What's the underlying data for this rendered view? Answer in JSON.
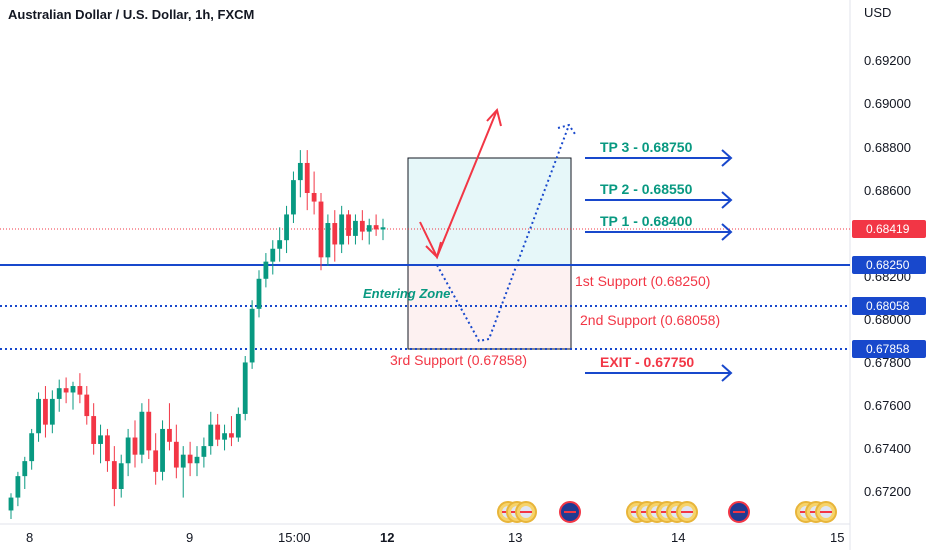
{
  "chart_data": {
    "type": "candlestick",
    "title": "Australian Dollar / U.S. Dollar, 1h, FXCM",
    "currency": "USD",
    "ylim": [
      0.6709,
      0.6936
    ],
    "y_ticks": [
      "0.69200",
      "0.69000",
      "0.68800",
      "0.68600",
      "0.68200",
      "0.68000",
      "0.67800",
      "0.67600",
      "0.67400",
      "0.67200"
    ],
    "x_ticks": [
      "8",
      "9",
      "15:00",
      "12",
      "13",
      "14",
      "15"
    ],
    "current_price": {
      "value": 0.68419,
      "label": "0.68419",
      "color": "#f23645"
    },
    "levels": [
      {
        "value": 0.6825,
        "label": "0.68250",
        "style": "solid",
        "color": "#1848cc"
      },
      {
        "value": 0.68058,
        "label": "0.68058",
        "style": "dotted",
        "color": "#1848cc"
      },
      {
        "value": 0.67858,
        "label": "0.67858",
        "style": "dotted",
        "color": "#1848cc"
      }
    ],
    "targets": [
      {
        "label": "TP 3 - 0.68750",
        "value": 0.6875
      },
      {
        "label": "TP 2 - 0.68550",
        "value": 0.6855
      },
      {
        "label": "TP 1 - 0.68400",
        "value": 0.684
      }
    ],
    "exit": {
      "label": "EXIT - 0.67750",
      "value": 0.6775
    },
    "supports": [
      {
        "label": "1st Support (0.68250)",
        "value": 0.6825
      },
      {
        "label": "2nd Support (0.68058)",
        "value": 0.68058
      },
      {
        "label": "3rd Support (0.67858)",
        "value": 0.67858
      }
    ],
    "zone_label": "Entering Zone",
    "candles": [
      [
        0.671,
        0.6718,
        0.6706,
        0.6716
      ],
      [
        0.6716,
        0.6728,
        0.6712,
        0.6726
      ],
      [
        0.6726,
        0.6735,
        0.672,
        0.6733
      ],
      [
        0.6733,
        0.6748,
        0.6729,
        0.6746
      ],
      [
        0.6746,
        0.6765,
        0.6742,
        0.6762
      ],
      [
        0.6762,
        0.6768,
        0.6744,
        0.675
      ],
      [
        0.675,
        0.6766,
        0.6746,
        0.6762
      ],
      [
        0.6762,
        0.6771,
        0.6756,
        0.6767
      ],
      [
        0.6767,
        0.6772,
        0.676,
        0.6765
      ],
      [
        0.6765,
        0.677,
        0.6757,
        0.6768
      ],
      [
        0.6768,
        0.6774,
        0.676,
        0.6764
      ],
      [
        0.6764,
        0.6768,
        0.675,
        0.6754
      ],
      [
        0.6754,
        0.676,
        0.6736,
        0.6741
      ],
      [
        0.6741,
        0.675,
        0.6732,
        0.6745
      ],
      [
        0.6745,
        0.6748,
        0.6728,
        0.6733
      ],
      [
        0.6733,
        0.674,
        0.6712,
        0.672
      ],
      [
        0.672,
        0.6736,
        0.6716,
        0.6732
      ],
      [
        0.6732,
        0.6748,
        0.6726,
        0.6744
      ],
      [
        0.6744,
        0.6752,
        0.673,
        0.6736
      ],
      [
        0.6736,
        0.676,
        0.6732,
        0.6756
      ],
      [
        0.6756,
        0.6762,
        0.6734,
        0.6738
      ],
      [
        0.6738,
        0.6746,
        0.6722,
        0.6728
      ],
      [
        0.6728,
        0.6752,
        0.6724,
        0.6748
      ],
      [
        0.6748,
        0.676,
        0.6738,
        0.6742
      ],
      [
        0.6742,
        0.675,
        0.6725,
        0.673
      ],
      [
        0.673,
        0.674,
        0.6716,
        0.6736
      ],
      [
        0.6736,
        0.6742,
        0.6726,
        0.6732
      ],
      [
        0.6732,
        0.674,
        0.6726,
        0.6735
      ],
      [
        0.6735,
        0.6744,
        0.673,
        0.674
      ],
      [
        0.674,
        0.6756,
        0.6736,
        0.675
      ],
      [
        0.675,
        0.6755,
        0.674,
        0.6743
      ],
      [
        0.6743,
        0.675,
        0.6738,
        0.6746
      ],
      [
        0.6746,
        0.6754,
        0.674,
        0.6744
      ],
      [
        0.6744,
        0.6758,
        0.6742,
        0.6755
      ],
      [
        0.6755,
        0.6782,
        0.6752,
        0.6779
      ],
      [
        0.6779,
        0.6808,
        0.6776,
        0.6804
      ],
      [
        0.6804,
        0.6822,
        0.68,
        0.6818
      ],
      [
        0.6818,
        0.683,
        0.6814,
        0.6826
      ],
      [
        0.6826,
        0.6836,
        0.682,
        0.6832
      ],
      [
        0.6832,
        0.6842,
        0.6826,
        0.6836
      ],
      [
        0.6836,
        0.6852,
        0.683,
        0.6848
      ],
      [
        0.6848,
        0.6868,
        0.6844,
        0.6864
      ],
      [
        0.6864,
        0.6878,
        0.6856,
        0.6872
      ],
      [
        0.6872,
        0.6878,
        0.685,
        0.6858
      ],
      [
        0.6858,
        0.6868,
        0.6848,
        0.6854
      ],
      [
        0.6854,
        0.6858,
        0.6822,
        0.6828
      ],
      [
        0.6828,
        0.6848,
        0.6824,
        0.6844
      ],
      [
        0.6844,
        0.685,
        0.6826,
        0.6834
      ],
      [
        0.6834,
        0.6852,
        0.683,
        0.6848
      ],
      [
        0.6848,
        0.685,
        0.6834,
        0.6838
      ],
      [
        0.6838,
        0.6848,
        0.6834,
        0.6845
      ],
      [
        0.6845,
        0.685,
        0.6836,
        0.684
      ],
      [
        0.684,
        0.6846,
        0.6834,
        0.6843
      ],
      [
        0.6843,
        0.6848,
        0.6838,
        0.6841
      ],
      [
        0.6841,
        0.6846,
        0.6836,
        0.6842
      ]
    ],
    "colors": {
      "up": "#089981",
      "down": "#f23645",
      "level": "#1848cc"
    }
  },
  "events": {
    "day13": [
      "us-flag-icon",
      "us-flag-icon",
      "us-flag-icon",
      "au-flag-icon"
    ],
    "day14": [
      "us-flag-icon",
      "us-flag-icon",
      "us-flag-icon",
      "us-flag-icon",
      "us-flag-icon",
      "us-flag-icon",
      "au-flag-icon"
    ],
    "day15": [
      "us-flag-icon",
      "us-flag-icon",
      "us-flag-icon"
    ]
  }
}
